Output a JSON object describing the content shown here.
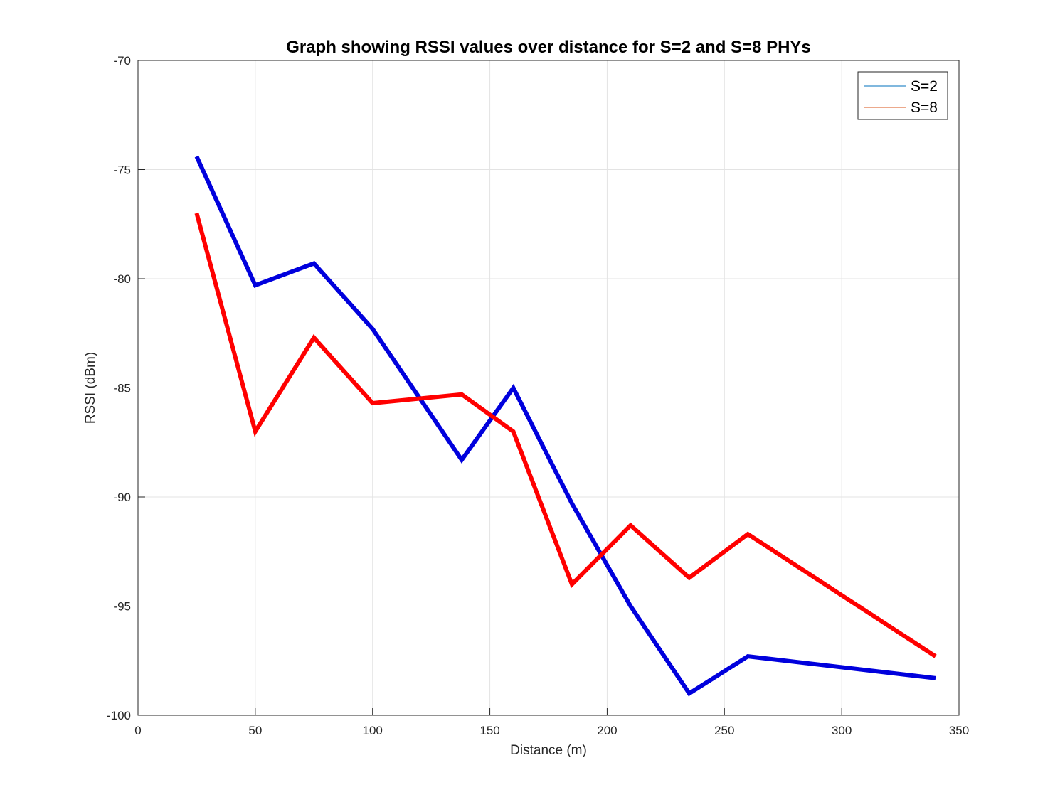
{
  "chart_data": {
    "type": "line",
    "title": "Graph showing RSSI values over distance for S=2 and S=8 PHYs",
    "xlabel": "Distance (m)",
    "ylabel": "RSSI (dBm)",
    "xlim": [
      0,
      350
    ],
    "ylim": [
      -100,
      -70
    ],
    "xticks": [
      0,
      50,
      100,
      150,
      200,
      250,
      300,
      350
    ],
    "yticks": [
      -70,
      -75,
      -80,
      -85,
      -90,
      -95,
      -100
    ],
    "grid": true,
    "legend_position": "top-right",
    "x": [
      25,
      50,
      75,
      100,
      138,
      160,
      185,
      210,
      235,
      260,
      340
    ],
    "series": [
      {
        "name": "S=2",
        "values": [
          -74.4,
          -80.3,
          -79.3,
          -82.3,
          -88.3,
          -85.0,
          -90.3,
          -95.0,
          -99.0,
          -97.3,
          -98.3
        ],
        "color": "#0000dd",
        "legend_color": "#0072bd"
      },
      {
        "name": "S=8",
        "values": [
          -77.0,
          -87.0,
          -82.7,
          -85.7,
          -85.3,
          -87.0,
          -94.0,
          -91.3,
          -93.7,
          -91.7,
          -97.3
        ],
        "color": "#ff0000",
        "legend_color": "#d95319"
      }
    ]
  }
}
